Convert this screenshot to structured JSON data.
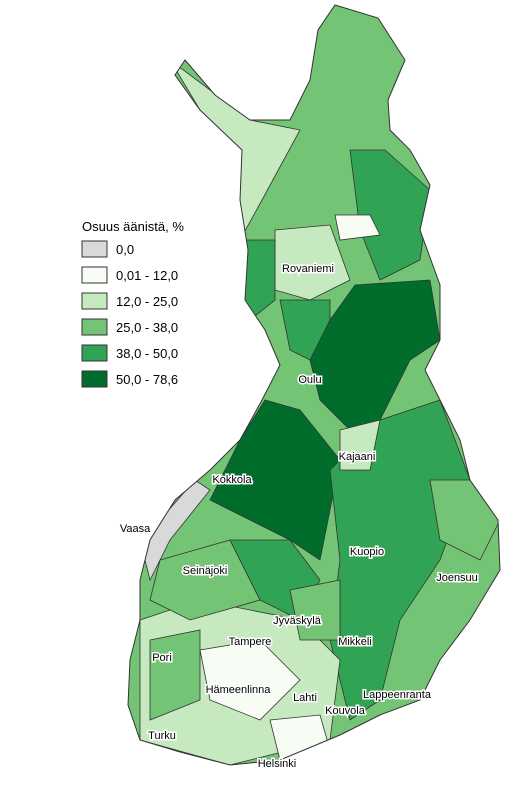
{
  "legend": {
    "title": "Osuus äänistä, %",
    "items": [
      {
        "label": "0,0",
        "color": "#d9d9d9"
      },
      {
        "label": "0,01 - 12,0",
        "color": "#f7fcf5"
      },
      {
        "label": "12,0 - 25,0",
        "color": "#c7e9c0"
      },
      {
        "label": "25,0 - 38,0",
        "color": "#74c476"
      },
      {
        "label": "38,0 - 50,0",
        "color": "#31a354"
      },
      {
        "label": "50,0 - 78,6",
        "color": "#006d2c"
      }
    ]
  },
  "cities": [
    "Rovaniemi",
    "Oulu",
    "Kajaani",
    "Kokkola",
    "Vaasa",
    "Kuopio",
    "Seinäjoki",
    "Joensuu",
    "Jyväskylä",
    "Tampere",
    "Mikkeli",
    "Pori",
    "Hämeenlinna",
    "Lahti",
    "Lappeenranta",
    "Kouvola",
    "Turku",
    "Helsinki"
  ]
}
